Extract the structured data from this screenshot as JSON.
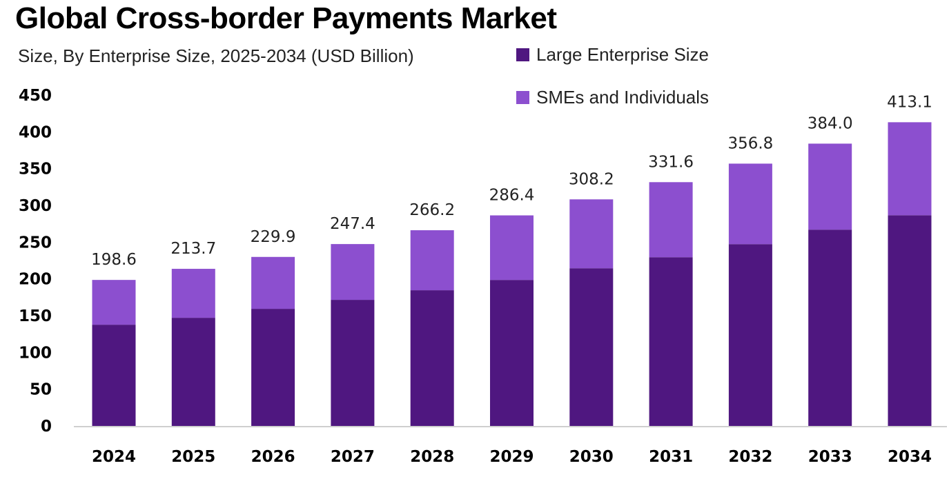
{
  "chart_data": {
    "type": "bar",
    "stacked": true,
    "title": "Global Cross-border Payments Market",
    "subtitle": "Size, By Enterprise Size, 2025-2034 (USD Billion)",
    "xlabel": "",
    "ylabel": "",
    "ylim": [
      0,
      450
    ],
    "yticks": [
      0,
      50,
      100,
      150,
      200,
      250,
      300,
      350,
      400,
      450
    ],
    "grid": false,
    "legend_position": "top-right",
    "categories": [
      "2024",
      "2025",
      "2026",
      "2027",
      "2028",
      "2029",
      "2030",
      "2031",
      "2032",
      "2033",
      "2034"
    ],
    "series": [
      {
        "name": "Large Enterprise Size",
        "color": "#4f1780",
        "values": [
          137.7,
          147.1,
          159.3,
          171.5,
          184.6,
          198.6,
          214.5,
          229.5,
          247.3,
          267.0,
          286.6
        ]
      },
      {
        "name": "SMEs and Individuals",
        "color": "#8c4fcf",
        "values": [
          60.9,
          66.6,
          70.6,
          75.9,
          81.6,
          87.8,
          93.7,
          102.1,
          109.5,
          117.0,
          126.5
        ]
      }
    ],
    "totals": [
      "198.6",
      "213.7",
      "229.9",
      "247.4",
      "266.2",
      "286.4",
      "308.2",
      "331.6",
      "356.8",
      "384.0",
      "413.1"
    ]
  }
}
